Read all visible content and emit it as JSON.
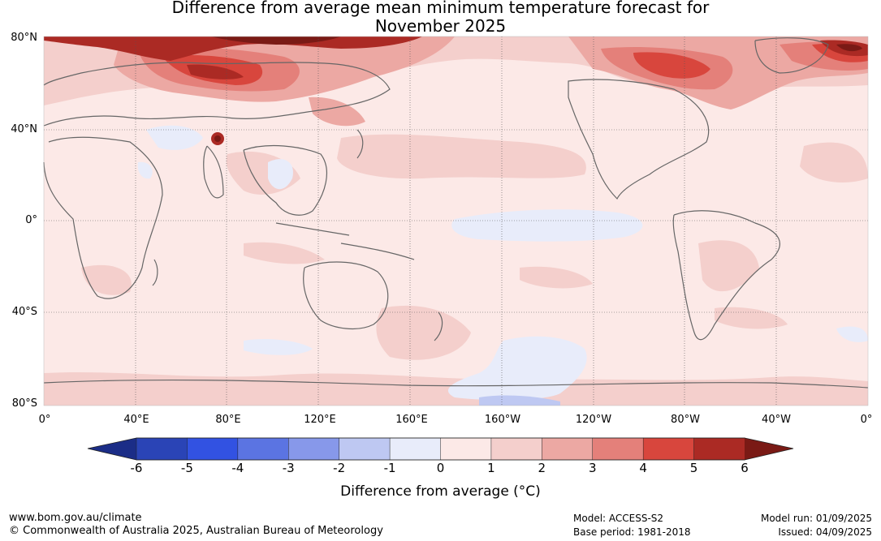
{
  "title_line1": "Difference from average mean minimum temperature forecast for",
  "title_line2": "November 2025",
  "lat_labels": [
    "80°N",
    "40°N",
    "0°",
    "40°S",
    "80°S"
  ],
  "lon_labels": [
    "0°",
    "40°E",
    "80°E",
    "120°E",
    "160°E",
    "160°W",
    "120°W",
    "80°W",
    "40°W",
    "0°"
  ],
  "colorbar": {
    "ticks": [
      "-6",
      "-5",
      "-4",
      "-3",
      "-2",
      "-1",
      "0",
      "1",
      "2",
      "3",
      "4",
      "5",
      "6"
    ],
    "colors": [
      "#1b2d87",
      "#2a44b6",
      "#3252e2",
      "#5b74e2",
      "#8798ea",
      "#bec8f2",
      "#e8ecfa",
      "#fce9e7",
      "#f4cfcc",
      "#eca8a3",
      "#e4807a",
      "#d8463d",
      "#ab2a24",
      "#7a1a15"
    ],
    "label": "Difference from average (°C)"
  },
  "footer": {
    "website": "www.bom.gov.au/climate",
    "copyright": "© Commonwealth of Australia 2025, Australian Bureau of Meteorology",
    "model": "Model: ACCESS-S2",
    "base_period": "Base period: 1981-2018",
    "model_run": "Model run: 01/09/2025",
    "issued": "Issued: 04/09/2025"
  }
}
